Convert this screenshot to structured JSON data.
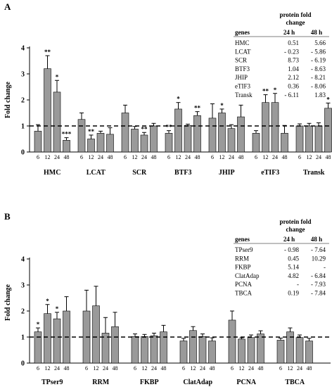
{
  "panels": [
    {
      "letter": "A",
      "ylabel": "Fold change",
      "yticks": [
        "0",
        "1",
        "2",
        "3",
        "4"
      ],
      "table": {
        "title_line1": "protein fold",
        "title_line2": "change",
        "col_header_genes": "genes",
        "col_header_24": "24 h",
        "col_header_48": "48 h",
        "rows": [
          {
            "gene": "HMC",
            "h24": "0.51",
            "h48": "5.66"
          },
          {
            "gene": "LCAT",
            "h24": "- 0.23",
            "h48": "- 5.86"
          },
          {
            "gene": "SCR",
            "h24": "8.73",
            "h48": "- 6.19"
          },
          {
            "gene": "BTF3",
            "h24": "1.04",
            "h48": "- 8.63"
          },
          {
            "gene": "JHIP",
            "h24": "2.12",
            "h48": "- 8.21"
          },
          {
            "gene": "eTIF3",
            "h24": "0.36",
            "h48": "- 8.06"
          },
          {
            "gene": "Transk",
            "h24": "- 6.11",
            "h48": "1.83"
          }
        ]
      }
    },
    {
      "letter": "B",
      "ylabel": "Fold change",
      "yticks": [
        "0",
        "1",
        "2",
        "3",
        "4"
      ],
      "table": {
        "title_line1": "protein fold",
        "title_line2": "change",
        "col_header_genes": "genes",
        "col_header_24": "24 h",
        "col_header_48": "48 h",
        "rows": [
          {
            "gene": "TPser9",
            "h24": "- 0.98",
            "h48": "- 7.64"
          },
          {
            "gene": "RRM",
            "h24": "0.45",
            "h48": "10.29"
          },
          {
            "gene": "FKBP",
            "h24": "5.14",
            "h48": "-"
          },
          {
            "gene": "ClatAdap",
            "h24": "4.82",
            "h48": "- 6.84"
          },
          {
            "gene": "PCNA",
            "h24": "-",
            "h48": "- 7.93"
          },
          {
            "gene": "TBCA",
            "h24": "0.19",
            "h48": "- 7.84"
          }
        ]
      }
    }
  ],
  "chart_data": [
    {
      "type": "bar",
      "panel": "A",
      "ylabel": "Fold change",
      "ylim": [
        0,
        4
      ],
      "reference_line": 1,
      "timepoints": [
        "6",
        "12",
        "24",
        "48"
      ],
      "groups": [
        {
          "name": "HMC",
          "values": [
            0.8,
            3.2,
            2.3,
            0.45
          ],
          "errors": [
            0.25,
            0.5,
            0.45,
            0.1
          ],
          "sig": [
            "",
            "**",
            "*",
            "***"
          ]
        },
        {
          "name": "LCAT",
          "values": [
            1.25,
            0.5,
            0.72,
            0.68
          ],
          "errors": [
            0.25,
            0.15,
            0.08,
            0.25
          ],
          "sig": [
            "",
            "**",
            "",
            ""
          ]
        },
        {
          "name": "SCR",
          "values": [
            1.5,
            0.88,
            0.65,
            1.0
          ],
          "errors": [
            0.3,
            0.1,
            0.1,
            0.1
          ],
          "sig": [
            "",
            "",
            "**",
            ""
          ]
        },
        {
          "name": "BTF3",
          "values": [
            0.72,
            1.65,
            1.02,
            1.4
          ],
          "errors": [
            0.1,
            0.25,
            0.05,
            0.15
          ],
          "sig": [
            "**",
            "*",
            "",
            "**"
          ]
        },
        {
          "name": "JHIP",
          "values": [
            1.3,
            1.5,
            0.9,
            1.35
          ],
          "errors": [
            0.55,
            0.15,
            0.15,
            0.45
          ],
          "sig": [
            "",
            "*",
            "",
            ""
          ]
        },
        {
          "name": "eTIF3",
          "values": [
            0.72,
            1.9,
            1.9,
            0.72
          ],
          "errors": [
            0.1,
            0.3,
            0.35,
            0.3
          ],
          "sig": [
            "",
            "**",
            "*",
            ""
          ]
        },
        {
          "name": "Transk",
          "values": [
            1.0,
            1.0,
            1.0,
            1.68
          ],
          "errors": [
            0.08,
            0.1,
            0.12,
            0.2
          ],
          "sig": [
            "",
            "",
            "",
            "*"
          ]
        }
      ]
    },
    {
      "type": "bar",
      "panel": "B",
      "ylabel": "Fold change",
      "ylim": [
        0,
        4
      ],
      "reference_line": 1,
      "timepoints": [
        "6",
        "12",
        "24",
        "48"
      ],
      "groups": [
        {
          "name": "TPser9",
          "values": [
            1.2,
            1.9,
            1.7,
            2.0
          ],
          "errors": [
            0.15,
            0.35,
            0.25,
            0.55
          ],
          "sig": [
            "*",
            "*",
            "*",
            ""
          ]
        },
        {
          "name": "RRM",
          "values": [
            2.0,
            2.2,
            1.15,
            1.4
          ],
          "errors": [
            0.8,
            0.75,
            0.6,
            0.55
          ],
          "sig": [
            "",
            "",
            "",
            ""
          ]
        },
        {
          "name": "FKBP",
          "values": [
            1.02,
            1.02,
            1.05,
            1.2
          ],
          "errors": [
            0.1,
            0.08,
            0.1,
            0.25
          ],
          "sig": [
            "",
            "",
            "",
            ""
          ]
        },
        {
          "name": "ClatAdap",
          "values": [
            0.85,
            1.25,
            1.02,
            0.85
          ],
          "errors": [
            0.1,
            0.15,
            0.1,
            0.12
          ],
          "sig": [
            "",
            "",
            "",
            ""
          ]
        },
        {
          "name": "PCNA",
          "values": [
            1.65,
            0.92,
            0.98,
            1.12
          ],
          "errors": [
            0.35,
            0.05,
            0.1,
            0.12
          ],
          "sig": [
            "",
            "",
            "",
            ""
          ]
        },
        {
          "name": "TBCA",
          "values": [
            0.88,
            1.2,
            0.98,
            0.85
          ],
          "errors": [
            0.08,
            0.15,
            0.1,
            0.1
          ],
          "sig": [
            "",
            "",
            "",
            ""
          ]
        }
      ]
    }
  ],
  "colors": {
    "bar_fill": "#9a9a9a",
    "bar_stroke": "#000000",
    "reference_line": "#000000"
  }
}
